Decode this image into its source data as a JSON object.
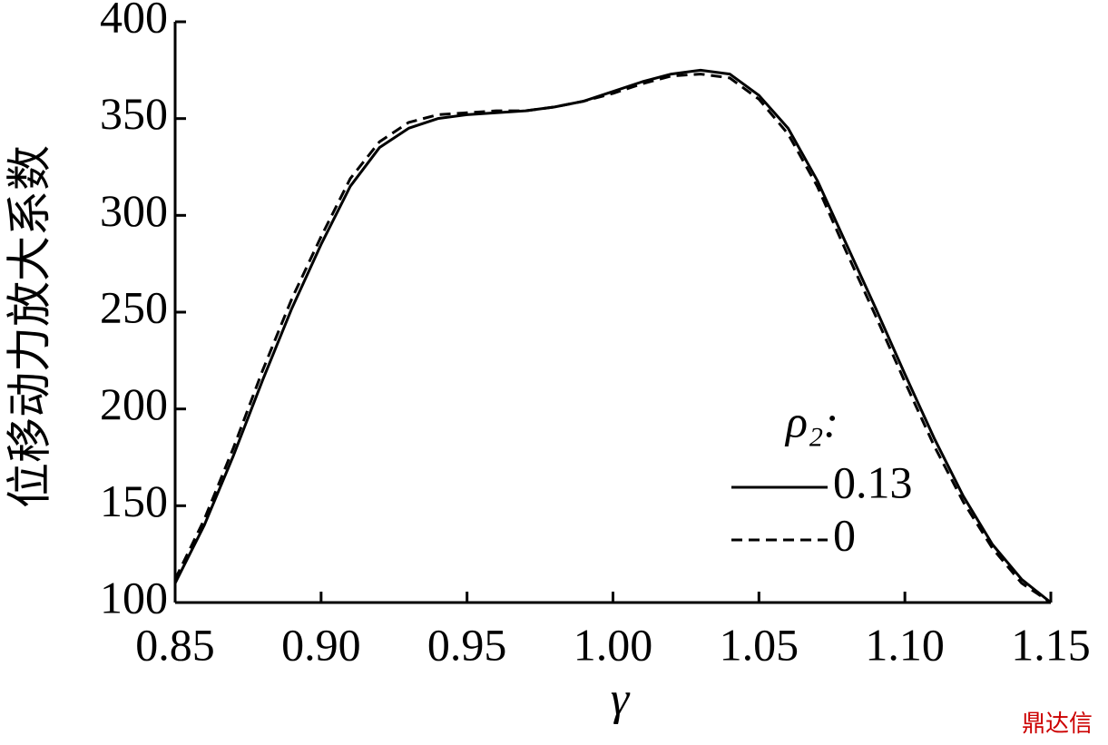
{
  "chart_data": {
    "type": "line",
    "x_label": "γ",
    "y_label": "位移动力放大系数",
    "legend_title": "ρ₂:",
    "watermark": "鼎达信",
    "x": [
      0.85,
      0.86,
      0.87,
      0.88,
      0.89,
      0.9,
      0.91,
      0.92,
      0.93,
      0.94,
      0.95,
      0.96,
      0.97,
      0.98,
      0.99,
      1.0,
      1.01,
      1.02,
      1.03,
      1.04,
      1.05,
      1.06,
      1.07,
      1.08,
      1.09,
      1.1,
      1.11,
      1.12,
      1.13,
      1.14,
      1.15
    ],
    "series": [
      {
        "name": "0.13",
        "color": "#000000",
        "dash": "solid",
        "values": [
          110,
          140,
          176,
          215,
          252,
          285,
          315,
          335,
          345,
          350,
          352,
          353,
          354,
          356,
          359,
          364,
          369,
          373,
          375,
          373,
          362,
          345,
          318,
          285,
          252,
          218,
          185,
          155,
          130,
          112,
          100
        ]
      },
      {
        "name": "0",
        "color": "#000000",
        "dash": "dashed",
        "values": [
          112,
          143,
          180,
          220,
          257,
          289,
          319,
          338,
          348,
          352,
          353,
          354,
          354,
          356,
          359,
          363,
          368,
          372,
          373,
          371,
          360,
          342,
          315,
          281,
          248,
          214,
          181,
          152,
          128,
          110,
          100
        ]
      }
    ],
    "xlim": [
      0.85,
      1.15
    ],
    "xticks": [
      0.85,
      {
        "value": 0.9,
        "label": "0.90"
      },
      0.95,
      {
        "value": 1.0,
        "label": "1.00"
      },
      1.05,
      {
        "value": 1.1,
        "label": "1.10"
      },
      1.15
    ],
    "ylim": [
      100,
      400
    ],
    "yticks": [
      100,
      150,
      200,
      250,
      300,
      350,
      400
    ],
    "grid": false
  }
}
